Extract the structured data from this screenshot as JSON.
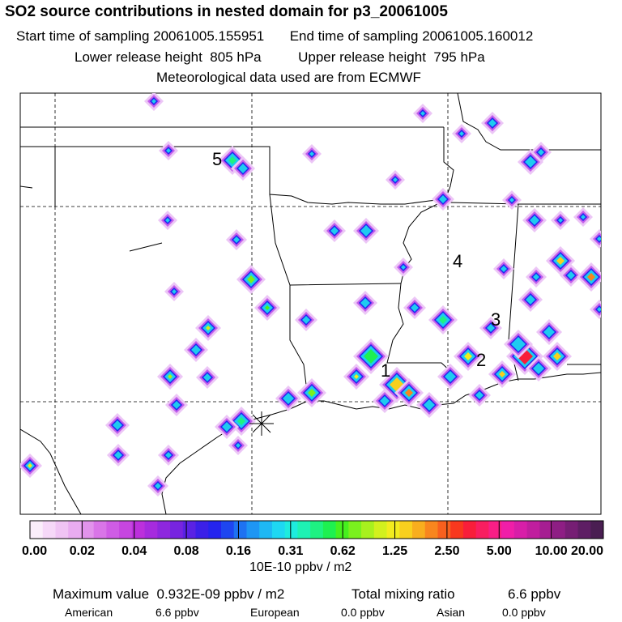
{
  "header": {
    "title": "SO2 source contributions in nested domain for p3_20061005",
    "start_label": "Start time of sampling",
    "start_value": "20061005.155951",
    "end_label": "End time of sampling",
    "end_value": "20061005.160012",
    "lower_label": "Lower release height",
    "lower_value": "805 hPa",
    "upper_label": "Upper release height",
    "upper_value": "795 hPa",
    "met_note": "Meteorological data used are from ECMWF"
  },
  "map": {
    "source_labels": [
      "1",
      "2",
      "3",
      "4",
      "5"
    ]
  },
  "colorbar": {
    "tick_labels": [
      "0.00",
      "0.02",
      "0.04",
      "0.08",
      "0.16",
      "0.31",
      "0.62",
      "1.25",
      "2.50",
      "5.00",
      "10.00",
      "20.00"
    ],
    "unit": "10E-10 ppbv / m2",
    "colors": [
      "#fbeefb",
      "#f6d8f8",
      "#f0c4f4",
      "#e9acf0",
      "#e293ec",
      "#d975e8",
      "#cf5ce5",
      "#c646e0",
      "#bc30dc",
      "#a62bde",
      "#8e27de",
      "#7724e0",
      "#5a22e4",
      "#3b20e8",
      "#2424ee",
      "#1e46f0",
      "#1e72f2",
      "#1e96f4",
      "#1eb8f4",
      "#1ed8f2",
      "#1eecde",
      "#1ef2b4",
      "#1ef282",
      "#1ef050",
      "#46f01e",
      "#7af01e",
      "#a8f01e",
      "#d2f01e",
      "#f2ec1e",
      "#f8d01e",
      "#f8ae1e",
      "#f8861e",
      "#f8601e",
      "#f8381e",
      "#f81e3a",
      "#f81e60",
      "#f81e86",
      "#f01ea8",
      "#d81ea8",
      "#c01e9e",
      "#a61e92",
      "#8e1e84",
      "#761e74",
      "#5e1e64",
      "#4a1e52"
    ]
  },
  "footer": {
    "max_label": "Maximum value",
    "max_value": "0.932E-09 ppbv / m2",
    "total_label": "Total mixing ratio",
    "total_value": "6.6 ppbv",
    "american_label": "American",
    "american_value": "6.6 ppbv",
    "european_label": "European",
    "european_value": "0.0 ppbv",
    "asian_label": "Asian",
    "asian_value": "0.0 ppbv"
  }
}
